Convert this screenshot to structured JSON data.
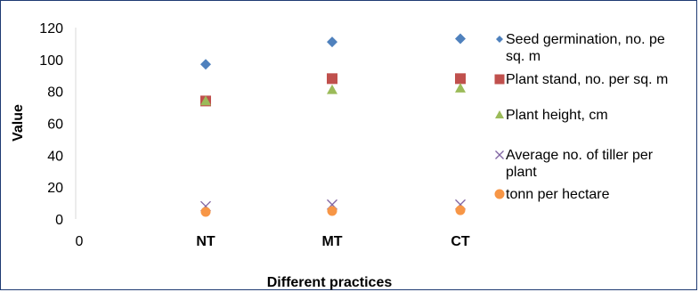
{
  "chart_data": {
    "type": "scatter",
    "title": "",
    "xlabel": "Different practices",
    "ylabel": "Value",
    "x_origin_label": "0",
    "categories": [
      "NT",
      "MT",
      "CT"
    ],
    "ylim": [
      0,
      120
    ],
    "yticks": [
      "0",
      "20",
      "40",
      "60",
      "80",
      "100",
      "120"
    ],
    "grid": false,
    "legend_position": "right",
    "series": [
      {
        "name": "Seed germination, no. per sq. m",
        "legend_lines": [
          "Seed germination, no. pe",
          "sq. m"
        ],
        "marker": "diamond",
        "color": "#4f81bd",
        "values": [
          97,
          111,
          113
        ]
      },
      {
        "name": "Plant stand, no. per sq. m",
        "legend_lines": [
          "Plant stand, no. per sq. m"
        ],
        "marker": "square",
        "color": "#c0504d",
        "values": [
          74,
          88,
          88
        ]
      },
      {
        "name": "Plant height, cm",
        "legend_lines": [
          "Plant height, cm"
        ],
        "marker": "triangle",
        "color": "#9bbb59",
        "values": [
          74,
          81,
          82
        ]
      },
      {
        "name": "Average no. of tiller per plant",
        "legend_lines": [
          "Average no. of tiller per",
          "plant"
        ],
        "marker": "x",
        "color": "#8064a2",
        "values": [
          8,
          9,
          9
        ]
      },
      {
        "name": "tonn per hectare",
        "legend_lines": [
          "tonn per hectare"
        ],
        "marker": "circle",
        "color": "#f79646",
        "values": [
          4.5,
          5,
          5.5
        ]
      }
    ]
  }
}
